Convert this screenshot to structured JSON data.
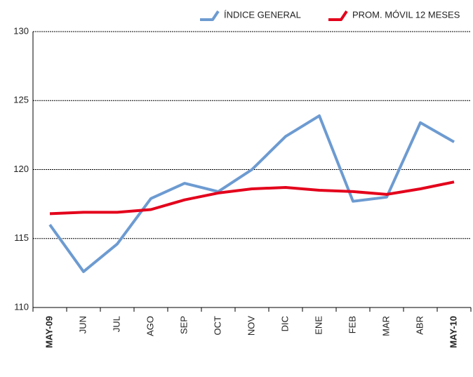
{
  "chart_data": {
    "type": "line",
    "categories": [
      "MAY-09",
      "JUN",
      "JUL",
      "AGO",
      "SEP",
      "OCT",
      "NOV",
      "DIC",
      "ENE",
      "FEB",
      "MAR",
      "ABR",
      "MAY-10"
    ],
    "series": [
      {
        "name": "ÍNDICE GENERAL",
        "color": "#6d9bd1",
        "values": [
          116.0,
          112.6,
          114.6,
          117.9,
          119.0,
          118.4,
          120.0,
          122.4,
          123.9,
          117.7,
          118.0,
          123.4,
          122.0
        ]
      },
      {
        "name": "PROM. MÓVIL 12 MESES",
        "color": "#e3001b",
        "values": [
          116.8,
          116.9,
          116.9,
          117.1,
          117.8,
          118.3,
          118.6,
          118.7,
          118.5,
          118.4,
          118.2,
          118.6,
          119.1
        ]
      }
    ],
    "ylim": [
      110,
      130
    ],
    "yticks": [
      110,
      115,
      120,
      125,
      130
    ],
    "grid": true,
    "legend": "top-right"
  }
}
